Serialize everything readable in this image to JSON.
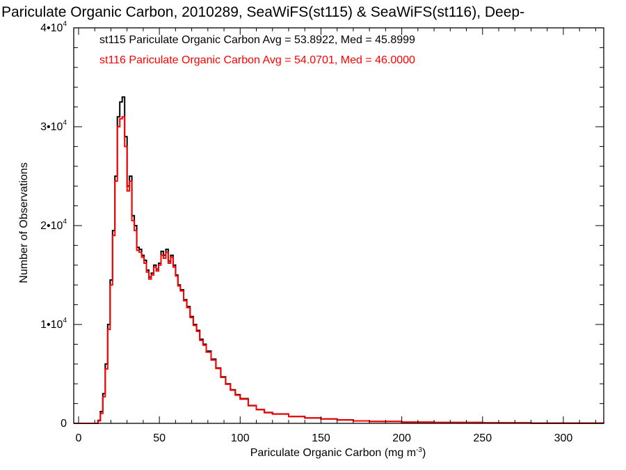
{
  "chart_data": {
    "type": "histogram",
    "title": "Pariculate Organic Carbon, 2010289, SeaWiFS(st115) & SeaWiFS(st116), Deep-",
    "xlabel": "Pariculate Organic Carbon (mg m",
    "xlabel_superscript": "-3",
    "xlabel_suffix": ")",
    "ylabel": "Number of Observations",
    "xlim": [
      -3,
      325
    ],
    "ylim": [
      0,
      40000
    ],
    "xticks": [
      {
        "value": 0,
        "label": "0"
      },
      {
        "value": 50,
        "label": "50"
      },
      {
        "value": 100,
        "label": "100"
      },
      {
        "value": 150,
        "label": "150"
      },
      {
        "value": 200,
        "label": "200"
      },
      {
        "value": 250,
        "label": "250"
      },
      {
        "value": 300,
        "label": "300"
      }
    ],
    "yticks": [
      {
        "value": 0,
        "label": "0",
        "exp": ""
      },
      {
        "value": 10000,
        "label": "1•10",
        "exp": "4"
      },
      {
        "value": 20000,
        "label": "2•10",
        "exp": "4"
      },
      {
        "value": 30000,
        "label": "3•10",
        "exp": "4"
      },
      {
        "value": 40000,
        "label": "4•10",
        "exp": "4"
      }
    ],
    "bin_width": 1.5,
    "annotations": [
      {
        "text": "st115 Pariculate Organic Carbon Avg = 53.8922, Med = 45.8999",
        "color": "#000000"
      },
      {
        "text": "st116 Pariculate Organic Carbon Avg = 54.0701, Med = 46.0000",
        "color": "#ff0000"
      }
    ],
    "series": [
      {
        "color": "#000000",
        "points": [
          [
            -3,
            0
          ],
          [
            10,
            0
          ],
          [
            12,
            300
          ],
          [
            13.5,
            1200
          ],
          [
            15,
            3000
          ],
          [
            16.5,
            6000
          ],
          [
            18,
            10000
          ],
          [
            19.5,
            14500
          ],
          [
            21,
            19500
          ],
          [
            22.5,
            25000
          ],
          [
            24,
            31000
          ],
          [
            25.5,
            32500
          ],
          [
            27,
            33000
          ],
          [
            28.5,
            29000
          ],
          [
            30,
            24000
          ],
          [
            31.5,
            25000
          ],
          [
            33,
            21000
          ],
          [
            34.5,
            20000
          ],
          [
            36,
            17800
          ],
          [
            37.5,
            17600
          ],
          [
            39,
            17000
          ],
          [
            40.5,
            16500
          ],
          [
            42,
            15500
          ],
          [
            43.5,
            14800
          ],
          [
            45,
            15200
          ],
          [
            46.5,
            16000
          ],
          [
            48,
            15600
          ],
          [
            49.5,
            16200
          ],
          [
            51,
            17400
          ],
          [
            52.5,
            17000
          ],
          [
            54,
            17600
          ],
          [
            55.5,
            16400
          ],
          [
            57,
            17000
          ],
          [
            58.5,
            16000
          ],
          [
            60,
            15000
          ],
          [
            61.5,
            14000
          ],
          [
            63,
            13500
          ],
          [
            65,
            12500
          ],
          [
            67,
            11800
          ],
          [
            69,
            10800
          ],
          [
            71,
            10000
          ],
          [
            73,
            9400
          ],
          [
            75,
            8500
          ],
          [
            77,
            8000
          ],
          [
            79,
            7300
          ],
          [
            82,
            6500
          ],
          [
            85,
            5600
          ],
          [
            88,
            4700
          ],
          [
            91,
            4000
          ],
          [
            94,
            3400
          ],
          [
            97,
            2900
          ],
          [
            100,
            2500
          ],
          [
            105,
            1800
          ],
          [
            110,
            1400
          ],
          [
            115,
            1100
          ],
          [
            120,
            950
          ],
          [
            130,
            700
          ],
          [
            140,
            550
          ],
          [
            150,
            450
          ],
          [
            160,
            350
          ],
          [
            170,
            250
          ],
          [
            180,
            200
          ],
          [
            200,
            130
          ],
          [
            220,
            90
          ],
          [
            250,
            50
          ],
          [
            280,
            20
          ],
          [
            325,
            0
          ]
        ]
      },
      {
        "color": "#ff0000",
        "points": [
          [
            -3,
            0
          ],
          [
            10,
            0
          ],
          [
            12,
            250
          ],
          [
            13.5,
            1000
          ],
          [
            15,
            2700
          ],
          [
            16.5,
            5500
          ],
          [
            18,
            9500
          ],
          [
            19.5,
            14000
          ],
          [
            21,
            19000
          ],
          [
            22.5,
            24500
          ],
          [
            24,
            30000
          ],
          [
            25.5,
            30800
          ],
          [
            27,
            31000
          ],
          [
            28.5,
            28000
          ],
          [
            30,
            23500
          ],
          [
            31.5,
            24500
          ],
          [
            33,
            20500
          ],
          [
            34.5,
            19500
          ],
          [
            36,
            17500
          ],
          [
            37.5,
            17300
          ],
          [
            39,
            16800
          ],
          [
            40.5,
            16200
          ],
          [
            42,
            15300
          ],
          [
            43.5,
            14600
          ],
          [
            45,
            15000
          ],
          [
            46.5,
            15800
          ],
          [
            48,
            15400
          ],
          [
            49.5,
            16000
          ],
          [
            51,
            17000
          ],
          [
            52.5,
            16700
          ],
          [
            54,
            17300
          ],
          [
            55.5,
            16200
          ],
          [
            57,
            16800
          ],
          [
            58.5,
            15800
          ],
          [
            60,
            14900
          ],
          [
            61.5,
            13900
          ],
          [
            63,
            13400
          ],
          [
            65,
            12400
          ],
          [
            67,
            11700
          ],
          [
            69,
            10700
          ],
          [
            71,
            9900
          ],
          [
            73,
            9300
          ],
          [
            75,
            8400
          ],
          [
            77,
            7900
          ],
          [
            79,
            7200
          ],
          [
            82,
            6400
          ],
          [
            85,
            5550
          ],
          [
            88,
            4650
          ],
          [
            91,
            3950
          ],
          [
            94,
            3350
          ],
          [
            97,
            2850
          ],
          [
            100,
            2450
          ],
          [
            105,
            1780
          ],
          [
            110,
            1380
          ],
          [
            115,
            1080
          ],
          [
            120,
            930
          ],
          [
            130,
            690
          ],
          [
            140,
            540
          ],
          [
            150,
            440
          ],
          [
            160,
            340
          ],
          [
            170,
            245
          ],
          [
            180,
            195
          ],
          [
            200,
            125
          ],
          [
            220,
            85
          ],
          [
            250,
            48
          ],
          [
            280,
            18
          ],
          [
            325,
            0
          ]
        ]
      }
    ]
  }
}
